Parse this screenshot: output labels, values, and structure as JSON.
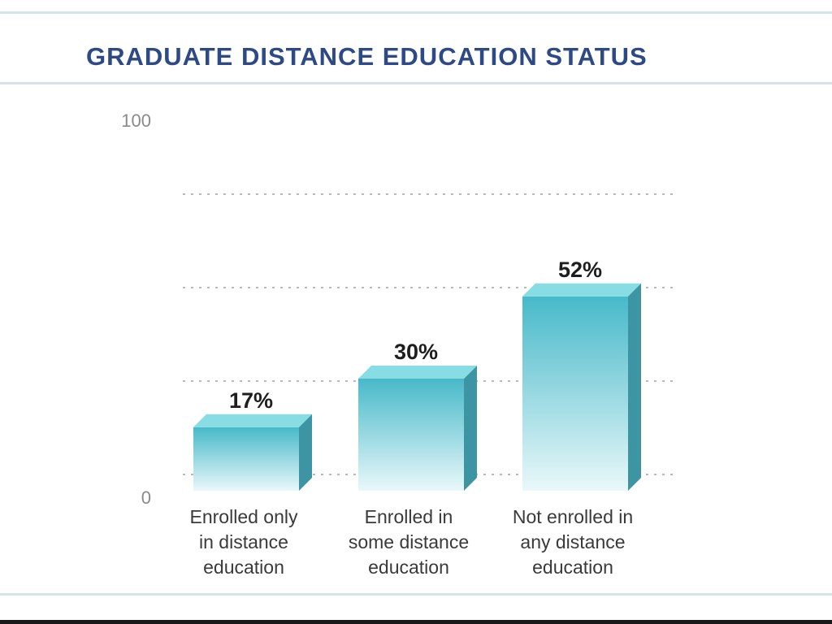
{
  "chart_data": {
    "type": "bar",
    "title": "GRADUATE DISTANCE EDUCATION STATUS",
    "categories": [
      [
        "Enrolled only",
        "in distance",
        "education"
      ],
      [
        "Enrolled in",
        "some distance",
        "education"
      ],
      [
        "Not enrolled in",
        "any distance",
        "education"
      ]
    ],
    "values": [
      17,
      30,
      52
    ],
    "value_labels": [
      "17%",
      "30%",
      "52%"
    ],
    "ylim": [
      0,
      100
    ],
    "y_ticks": [
      "0",
      "100"
    ],
    "grid": true,
    "xlabel": "",
    "ylabel": "",
    "colors": {
      "bar_top_face": "#88dde5",
      "bar_front_top": "#47b9c9",
      "bar_front_bottom": "#e9f8fa",
      "bar_side": "#3d94a3",
      "title": "#2e4a86"
    }
  }
}
